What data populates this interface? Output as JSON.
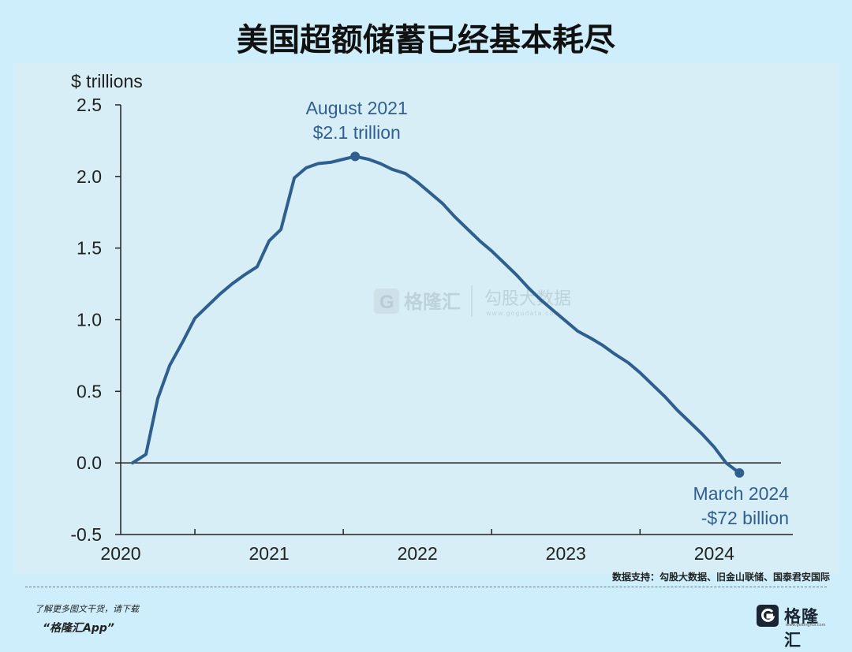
{
  "header": {
    "title": "美国超额储蓄已经基本耗尽"
  },
  "chart_data": {
    "type": "line",
    "ylabel": "$ trillions",
    "ylim": [
      -0.5,
      2.5
    ],
    "yticks": [
      2.5,
      2.0,
      1.5,
      1.0,
      0.5,
      0.0,
      -0.5
    ],
    "ytick_labels": [
      "2.5",
      "2.0",
      "1.5",
      "1.0",
      "0.5",
      "0.0",
      "-0.5"
    ],
    "xlim": [
      2020.0,
      2024.45
    ],
    "xticks": [
      2020,
      2021,
      2022,
      2023,
      2024
    ],
    "xtick_labels": [
      "2020",
      "2021",
      "2022",
      "2023",
      "2024"
    ],
    "series": [
      {
        "color": "#2f5f8f",
        "x": [
          2020.08,
          2020.17,
          2020.25,
          2020.33,
          2020.42,
          2020.5,
          2020.58,
          2020.67,
          2020.75,
          2020.83,
          2020.92,
          2021.0,
          2021.08,
          2021.17,
          2021.25,
          2021.33,
          2021.42,
          2021.5,
          2021.58,
          2021.67,
          2021.75,
          2021.83,
          2021.92,
          2022.0,
          2022.08,
          2022.17,
          2022.25,
          2022.33,
          2022.42,
          2022.5,
          2022.58,
          2022.67,
          2022.75,
          2022.83,
          2022.92,
          2023.0,
          2023.08,
          2023.17,
          2023.25,
          2023.33,
          2023.42,
          2023.5,
          2023.58,
          2023.67,
          2023.75,
          2023.83,
          2023.92,
          2024.0,
          2024.08,
          2024.17
        ],
        "y": [
          0.0,
          0.06,
          0.45,
          0.68,
          0.85,
          1.01,
          1.09,
          1.18,
          1.25,
          1.31,
          1.37,
          1.55,
          1.63,
          1.99,
          2.06,
          2.09,
          2.1,
          2.12,
          2.14,
          2.12,
          2.09,
          2.05,
          2.02,
          1.96,
          1.89,
          1.81,
          1.72,
          1.64,
          1.55,
          1.48,
          1.4,
          1.31,
          1.22,
          1.14,
          1.06,
          0.99,
          0.92,
          0.87,
          0.82,
          0.76,
          0.7,
          0.63,
          0.55,
          0.46,
          0.37,
          0.29,
          0.2,
          0.11,
          0.0,
          -0.07
        ]
      }
    ],
    "annotations": [
      {
        "x": 2021.58,
        "y": 2.14,
        "line1": "August 2021",
        "line2": "$2.1 trillion",
        "position": "above"
      },
      {
        "x": 2024.17,
        "y": -0.07,
        "line1": "March 2024",
        "line2": "-$72 billion",
        "position": "below"
      }
    ],
    "grid": false
  },
  "watermark": {
    "brand": "格隆汇",
    "partner": "勾股大数据",
    "partner_url": "www.gogudata.com"
  },
  "footer": {
    "source": "数据支持：勾股大数据、旧金山联储、国泰君安国际",
    "promo_line1": "了解更多图文干货，请下载",
    "promo_line2": "“格隆汇App”",
    "logo_text": "格隆汇",
    "logo_url": "www.gelonghui.com"
  },
  "colors": {
    "background": "#cdeefa",
    "plot_background": "#d7eef6",
    "line": "#2f5f8f",
    "annotation_text": "#2f5f8f"
  }
}
